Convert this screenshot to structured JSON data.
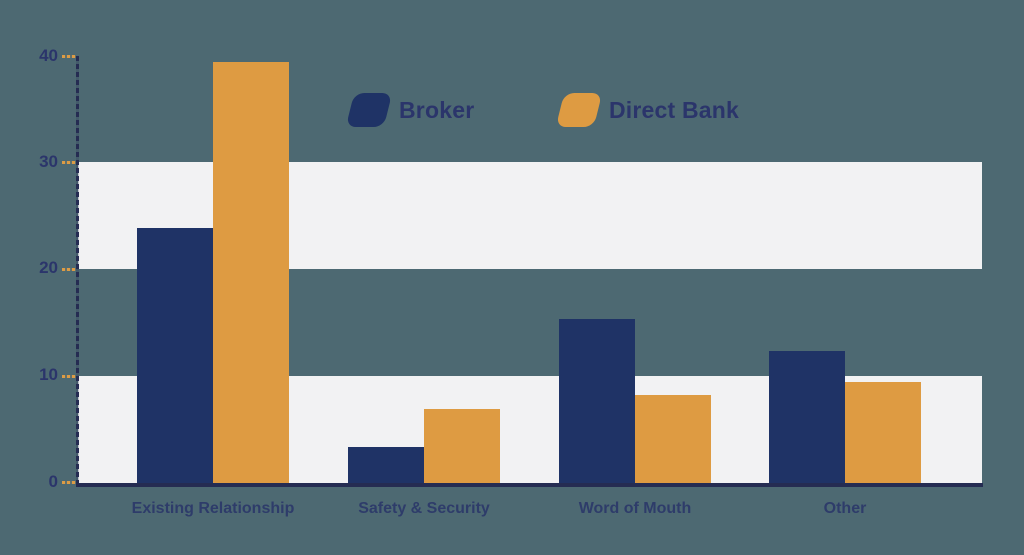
{
  "page": {
    "background_color": "#4d6972",
    "band_color": "#f2f2f3",
    "axis_color": "#252c52",
    "tick_color": "#dd9c45",
    "text_color": "#2b356b"
  },
  "chart_data": {
    "type": "bar",
    "title": "",
    "categories": [
      "Existing Relationship",
      "Safety & Security",
      "Word of Mouth",
      "Other"
    ],
    "series": [
      {
        "name": "Broker",
        "color": "#1f3366",
        "values": [
          23.9,
          3.4,
          15.4,
          12.4
        ]
      },
      {
        "name": "Direct Bank",
        "color": "#de9b42",
        "values": [
          39.4,
          6.9,
          8.2,
          9.5
        ]
      }
    ],
    "ylim": [
      0,
      40
    ],
    "yticks": [
      40,
      30,
      20,
      10,
      0
    ],
    "xlabel": "",
    "ylabel": "",
    "legend_position": "top-center",
    "grid": "alternating horizontal bands (0-10 and 20-30 shaded light gray)"
  }
}
